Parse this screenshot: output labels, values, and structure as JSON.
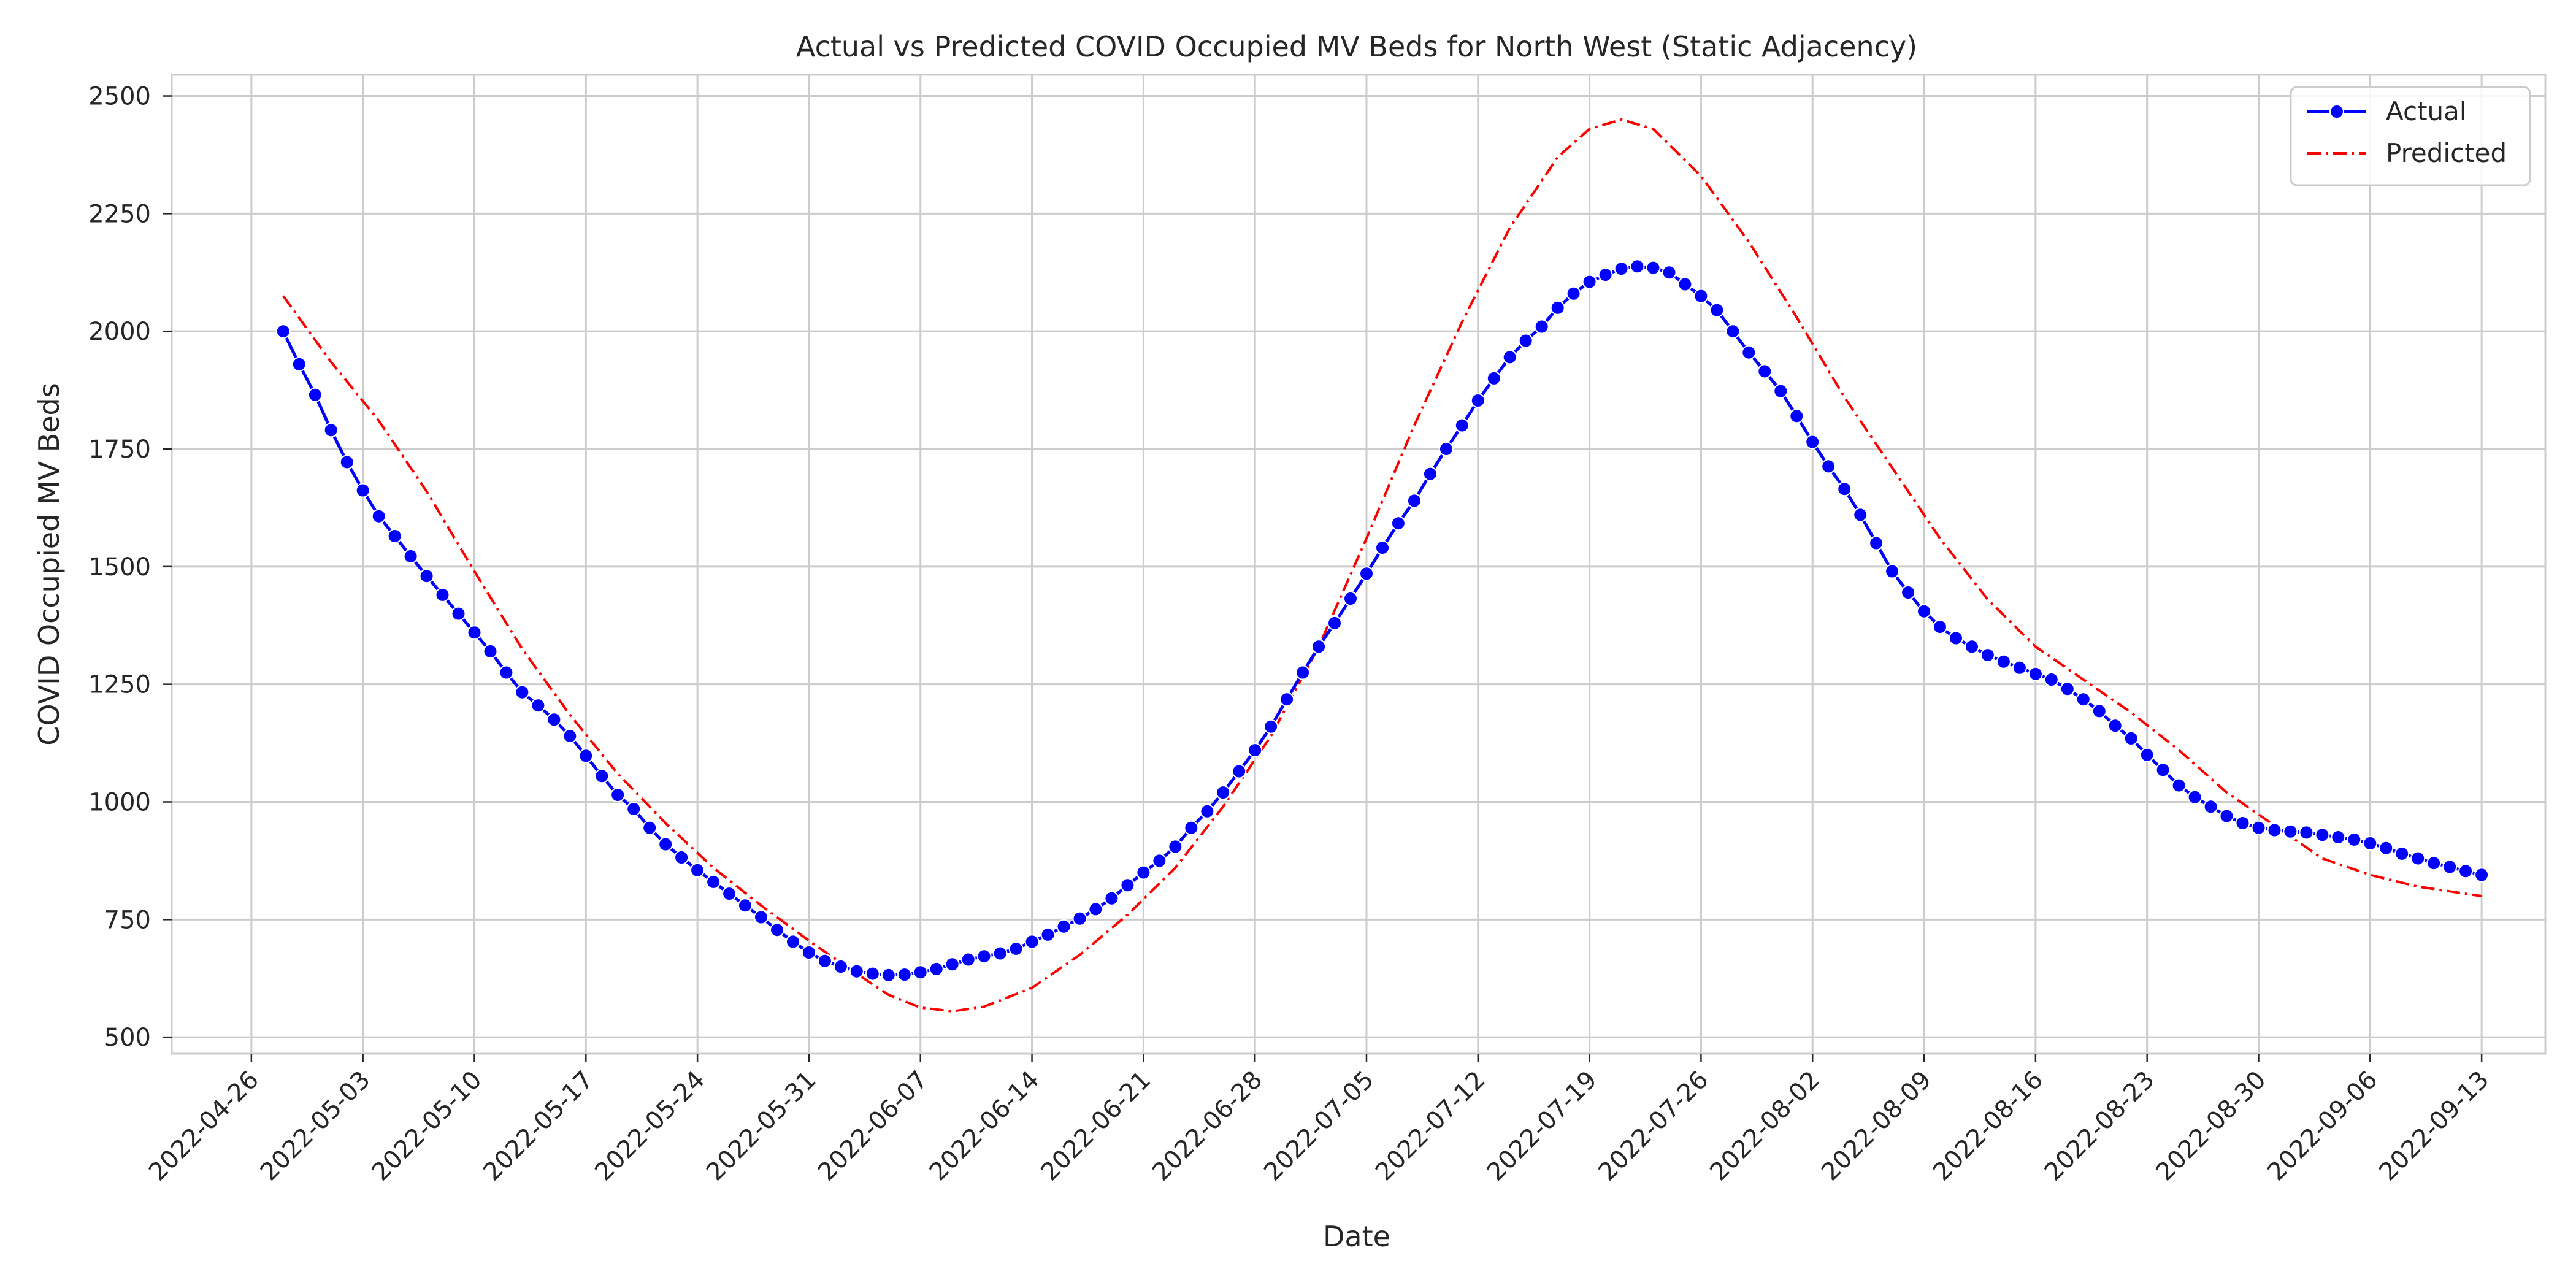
{
  "chart_data": {
    "type": "line",
    "title": "Actual vs Predicted COVID Occupied MV Beds for North West (Static Adjacency)",
    "xlabel": "Date",
    "ylabel": "COVID Occupied MV Beds",
    "x_ticks": [
      "2022-04-26",
      "2022-05-03",
      "2022-05-10",
      "2022-05-17",
      "2022-05-24",
      "2022-05-31",
      "2022-06-07",
      "2022-06-14",
      "2022-06-21",
      "2022-06-28",
      "2022-07-05",
      "2022-07-12",
      "2022-07-19",
      "2022-07-26",
      "2022-08-02",
      "2022-08-09",
      "2022-08-16",
      "2022-08-23",
      "2022-08-30",
      "2022-09-06",
      "2022-09-13"
    ],
    "x_range": [
      "2022-04-21",
      "2022-09-17"
    ],
    "y_ticks": [
      500,
      750,
      1000,
      1250,
      1500,
      1750,
      2000,
      2250,
      2500
    ],
    "ylim": [
      465,
      2545
    ],
    "grid": true,
    "legend_position": "top-right",
    "colors": {
      "actual": "#0000ff",
      "predicted": "#ff0000",
      "grid": "#cccccc"
    },
    "series": [
      {
        "name": "Actual",
        "style": "solid-with-markers",
        "points": [
          [
            "2022-04-28",
            2000
          ],
          [
            "2022-04-29",
            1930
          ],
          [
            "2022-04-30",
            1865
          ],
          [
            "2022-05-01",
            1790
          ],
          [
            "2022-05-02",
            1722
          ],
          [
            "2022-05-03",
            1662
          ],
          [
            "2022-05-04",
            1607
          ],
          [
            "2022-05-05",
            1565
          ],
          [
            "2022-05-06",
            1522
          ],
          [
            "2022-05-07",
            1480
          ],
          [
            "2022-05-08",
            1440
          ],
          [
            "2022-05-09",
            1400
          ],
          [
            "2022-05-10",
            1360
          ],
          [
            "2022-05-11",
            1320
          ],
          [
            "2022-05-12",
            1275
          ],
          [
            "2022-05-13",
            1233
          ],
          [
            "2022-05-14",
            1205
          ],
          [
            "2022-05-15",
            1175
          ],
          [
            "2022-05-16",
            1140
          ],
          [
            "2022-05-17",
            1098
          ],
          [
            "2022-05-18",
            1055
          ],
          [
            "2022-05-19",
            1015
          ],
          [
            "2022-05-20",
            985
          ],
          [
            "2022-05-21",
            945
          ],
          [
            "2022-05-22",
            910
          ],
          [
            "2022-05-23",
            882
          ],
          [
            "2022-05-24",
            855
          ],
          [
            "2022-05-25",
            830
          ],
          [
            "2022-05-26",
            805
          ],
          [
            "2022-05-27",
            780
          ],
          [
            "2022-05-28",
            755
          ],
          [
            "2022-05-29",
            728
          ],
          [
            "2022-05-30",
            703
          ],
          [
            "2022-05-31",
            680
          ],
          [
            "2022-06-01",
            662
          ],
          [
            "2022-06-02",
            650
          ],
          [
            "2022-06-03",
            640
          ],
          [
            "2022-06-04",
            635
          ],
          [
            "2022-06-05",
            632
          ],
          [
            "2022-06-06",
            633
          ],
          [
            "2022-06-07",
            638
          ],
          [
            "2022-06-08",
            645
          ],
          [
            "2022-06-09",
            655
          ],
          [
            "2022-06-10",
            665
          ],
          [
            "2022-06-11",
            672
          ],
          [
            "2022-06-12",
            678
          ],
          [
            "2022-06-13",
            688
          ],
          [
            "2022-06-14",
            703
          ],
          [
            "2022-06-15",
            718
          ],
          [
            "2022-06-16",
            735
          ],
          [
            "2022-06-17",
            752
          ],
          [
            "2022-06-18",
            772
          ],
          [
            "2022-06-19",
            795
          ],
          [
            "2022-06-20",
            823
          ],
          [
            "2022-06-21",
            850
          ],
          [
            "2022-06-22",
            875
          ],
          [
            "2022-06-23",
            905
          ],
          [
            "2022-06-24",
            945
          ],
          [
            "2022-06-25",
            980
          ],
          [
            "2022-06-26",
            1020
          ],
          [
            "2022-06-27",
            1065
          ],
          [
            "2022-06-28",
            1110
          ],
          [
            "2022-06-29",
            1160
          ],
          [
            "2022-06-30",
            1218
          ],
          [
            "2022-07-01",
            1275
          ],
          [
            "2022-07-02",
            1330
          ],
          [
            "2022-07-03",
            1380
          ],
          [
            "2022-07-04",
            1432
          ],
          [
            "2022-07-05",
            1485
          ],
          [
            "2022-07-06",
            1540
          ],
          [
            "2022-07-07",
            1592
          ],
          [
            "2022-07-08",
            1640
          ],
          [
            "2022-07-09",
            1697
          ],
          [
            "2022-07-10",
            1750
          ],
          [
            "2022-07-11",
            1800
          ],
          [
            "2022-07-12",
            1853
          ],
          [
            "2022-07-13",
            1900
          ],
          [
            "2022-07-14",
            1945
          ],
          [
            "2022-07-15",
            1980
          ],
          [
            "2022-07-16",
            2010
          ],
          [
            "2022-07-17",
            2050
          ],
          [
            "2022-07-18",
            2080
          ],
          [
            "2022-07-19",
            2105
          ],
          [
            "2022-07-20",
            2120
          ],
          [
            "2022-07-21",
            2133
          ],
          [
            "2022-07-22",
            2138
          ],
          [
            "2022-07-23",
            2135
          ],
          [
            "2022-07-24",
            2125
          ],
          [
            "2022-07-25",
            2100
          ],
          [
            "2022-07-26",
            2075
          ],
          [
            "2022-07-27",
            2045
          ],
          [
            "2022-07-28",
            2000
          ],
          [
            "2022-07-29",
            1955
          ],
          [
            "2022-07-30",
            1915
          ],
          [
            "2022-07-31",
            1873
          ],
          [
            "2022-08-01",
            1820
          ],
          [
            "2022-08-02",
            1765
          ],
          [
            "2022-08-03",
            1713
          ],
          [
            "2022-08-04",
            1665
          ],
          [
            "2022-08-05",
            1610
          ],
          [
            "2022-08-06",
            1550
          ],
          [
            "2022-08-07",
            1490
          ],
          [
            "2022-08-08",
            1445
          ],
          [
            "2022-08-09",
            1405
          ],
          [
            "2022-08-10",
            1372
          ],
          [
            "2022-08-11",
            1348
          ],
          [
            "2022-08-12",
            1330
          ],
          [
            "2022-08-13",
            1312
          ],
          [
            "2022-08-14",
            1298
          ],
          [
            "2022-08-15",
            1285
          ],
          [
            "2022-08-16",
            1272
          ],
          [
            "2022-08-17",
            1260
          ],
          [
            "2022-08-18",
            1240
          ],
          [
            "2022-08-19",
            1218
          ],
          [
            "2022-08-20",
            1193
          ],
          [
            "2022-08-21",
            1162
          ],
          [
            "2022-08-22",
            1135
          ],
          [
            "2022-08-23",
            1100
          ],
          [
            "2022-08-24",
            1068
          ],
          [
            "2022-08-25",
            1035
          ],
          [
            "2022-08-26",
            1010
          ],
          [
            "2022-08-27",
            990
          ],
          [
            "2022-08-28",
            970
          ],
          [
            "2022-08-29",
            955
          ],
          [
            "2022-08-30",
            945
          ],
          [
            "2022-08-31",
            940
          ],
          [
            "2022-09-01",
            937
          ],
          [
            "2022-09-02",
            935
          ],
          [
            "2022-09-03",
            930
          ],
          [
            "2022-09-04",
            925
          ],
          [
            "2022-09-05",
            920
          ],
          [
            "2022-09-06",
            912
          ],
          [
            "2022-09-07",
            902
          ],
          [
            "2022-09-08",
            890
          ],
          [
            "2022-09-09",
            880
          ],
          [
            "2022-09-10",
            870
          ],
          [
            "2022-09-11",
            862
          ],
          [
            "2022-09-12",
            853
          ],
          [
            "2022-09-13",
            845
          ]
        ]
      },
      {
        "name": "Predicted",
        "style": "dash-dot",
        "points": [
          [
            "2022-04-28",
            2075
          ],
          [
            "2022-05-01",
            1935
          ],
          [
            "2022-05-04",
            1810
          ],
          [
            "2022-05-07",
            1660
          ],
          [
            "2022-05-10",
            1490
          ],
          [
            "2022-05-13",
            1325
          ],
          [
            "2022-05-16",
            1185
          ],
          [
            "2022-05-19",
            1060
          ],
          [
            "2022-05-22",
            955
          ],
          [
            "2022-05-25",
            860
          ],
          [
            "2022-05-28",
            780
          ],
          [
            "2022-05-31",
            705
          ],
          [
            "2022-06-03",
            635
          ],
          [
            "2022-06-05",
            590
          ],
          [
            "2022-06-07",
            563
          ],
          [
            "2022-06-09",
            555
          ],
          [
            "2022-06-11",
            565
          ],
          [
            "2022-06-14",
            605
          ],
          [
            "2022-06-17",
            675
          ],
          [
            "2022-06-20",
            760
          ],
          [
            "2022-06-23",
            860
          ],
          [
            "2022-06-26",
            990
          ],
          [
            "2022-06-29",
            1140
          ],
          [
            "2022-07-02",
            1330
          ],
          [
            "2022-07-05",
            1560
          ],
          [
            "2022-07-08",
            1800
          ],
          [
            "2022-07-11",
            2020
          ],
          [
            "2022-07-14",
            2220
          ],
          [
            "2022-07-17",
            2370
          ],
          [
            "2022-07-19",
            2430
          ],
          [
            "2022-07-21",
            2450
          ],
          [
            "2022-07-23",
            2430
          ],
          [
            "2022-07-26",
            2330
          ],
          [
            "2022-07-29",
            2190
          ],
          [
            "2022-08-01",
            2030
          ],
          [
            "2022-08-04",
            1860
          ],
          [
            "2022-08-07",
            1710
          ],
          [
            "2022-08-10",
            1560
          ],
          [
            "2022-08-13",
            1430
          ],
          [
            "2022-08-16",
            1330
          ],
          [
            "2022-08-19",
            1260
          ],
          [
            "2022-08-22",
            1190
          ],
          [
            "2022-08-25",
            1110
          ],
          [
            "2022-08-28",
            1020
          ],
          [
            "2022-08-31",
            950
          ],
          [
            "2022-09-03",
            880
          ],
          [
            "2022-09-06",
            845
          ],
          [
            "2022-09-09",
            820
          ],
          [
            "2022-09-13",
            800
          ]
        ]
      }
    ]
  }
}
